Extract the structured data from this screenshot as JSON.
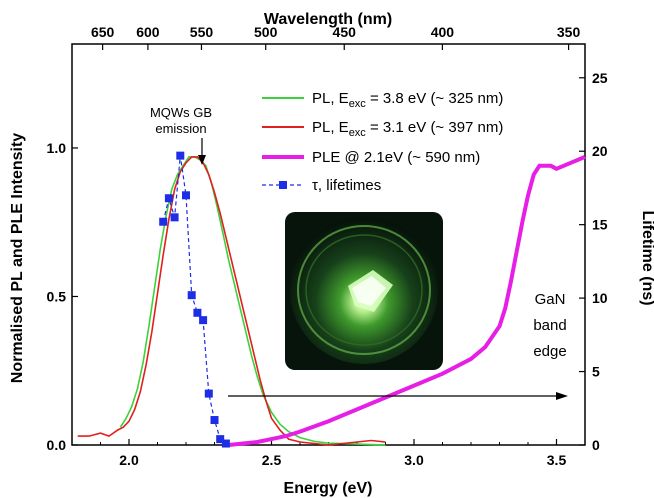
{
  "chart_data": {
    "type": "line",
    "xlabel": "Energy (eV)",
    "ylabel_left": "Normalised PL and PLE Intensity",
    "ylabel_right": "Lifetime (ns)",
    "xlabel_top": "Wavelength (nm)",
    "xlim": [
      1.8,
      3.6
    ],
    "ylim_left": [
      0,
      1.35
    ],
    "ylim_right": [
      0,
      27.3
    ],
    "x_ticks": [
      2.0,
      2.5,
      3.0,
      3.5
    ],
    "x_tick_labels": [
      "2.0",
      "2.5",
      "3.0",
      "3.5"
    ],
    "y_left_ticks": [
      0.0,
      0.5,
      1.0
    ],
    "y_left_tick_labels": [
      "0.0",
      "0.5",
      "1.0"
    ],
    "y_right_ticks": [
      0,
      5,
      10,
      15,
      20,
      25
    ],
    "y_right_tick_labels": [
      "0",
      "5",
      "10",
      "15",
      "20",
      "25"
    ],
    "top_ticks_nm": [
      650,
      600,
      550,
      500,
      450,
      400,
      350
    ],
    "top_tick_labels": [
      "650",
      "600",
      "550",
      "500",
      "450",
      "400",
      "350"
    ],
    "grid": false,
    "legend_placement": "top-right",
    "series": [
      {
        "name": "PL, E_exc = 3.8 eV (~ 325 nm)",
        "legend_main": "PL, E",
        "legend_sub": "exc",
        "legend_rest": " = 3.8 eV (~ 325 nm)",
        "color": "#3cd23c",
        "axis": "left",
        "style": "solid",
        "x": [
          1.97,
          1.99,
          2.01,
          2.03,
          2.05,
          2.07,
          2.09,
          2.11,
          2.13,
          2.15,
          2.17,
          2.19,
          2.21,
          2.23,
          2.25,
          2.27,
          2.29,
          2.31,
          2.33,
          2.35,
          2.37,
          2.39,
          2.41,
          2.43,
          2.45,
          2.47,
          2.5,
          2.53,
          2.56,
          2.6,
          2.65,
          2.7,
          2.8,
          2.9
        ],
        "y": [
          0.06,
          0.09,
          0.13,
          0.19,
          0.28,
          0.4,
          0.53,
          0.66,
          0.77,
          0.86,
          0.91,
          0.94,
          0.97,
          0.97,
          0.96,
          0.94,
          0.88,
          0.8,
          0.71,
          0.62,
          0.54,
          0.46,
          0.38,
          0.3,
          0.23,
          0.17,
          0.11,
          0.07,
          0.045,
          0.025,
          0.012,
          0.006,
          0.003,
          0.0
        ]
      },
      {
        "name": "PL, E_exc = 3.1 eV (~ 397 nm)",
        "legend_main": "PL, E",
        "legend_sub": "exc",
        "legend_rest": " = 3.1 eV (~ 397 nm)",
        "color": "#e0201e",
        "axis": "left",
        "style": "solid",
        "x": [
          1.82,
          1.86,
          1.9,
          1.93,
          1.96,
          1.98,
          2.0,
          2.02,
          2.04,
          2.06,
          2.08,
          2.1,
          2.12,
          2.14,
          2.16,
          2.18,
          2.2,
          2.22,
          2.24,
          2.26,
          2.28,
          2.3,
          2.32,
          2.34,
          2.36,
          2.38,
          2.4,
          2.42,
          2.44,
          2.46,
          2.48,
          2.5,
          2.53,
          2.56,
          2.6,
          2.7,
          2.8,
          2.85,
          2.9
        ],
        "y": [
          0.03,
          0.03,
          0.04,
          0.03,
          0.05,
          0.06,
          0.08,
          0.12,
          0.18,
          0.27,
          0.38,
          0.51,
          0.64,
          0.76,
          0.86,
          0.92,
          0.95,
          0.97,
          0.97,
          0.95,
          0.91,
          0.85,
          0.78,
          0.7,
          0.62,
          0.54,
          0.46,
          0.38,
          0.3,
          0.22,
          0.15,
          0.09,
          0.05,
          0.02,
          0.01,
          0.0,
          0.01,
          0.015,
          0.01
        ]
      },
      {
        "name": "PLE @ 2.1eV (~ 590 nm)",
        "legend_main": "PLE @ 2.1eV (~ 590 nm)",
        "color": "#e61ee6",
        "axis": "left",
        "style": "thick",
        "x": [
          2.35,
          2.4,
          2.45,
          2.5,
          2.55,
          2.6,
          2.7,
          2.8,
          2.9,
          3.0,
          3.1,
          3.2,
          3.25,
          3.3,
          3.32,
          3.34,
          3.36,
          3.38,
          3.4,
          3.42,
          3.44,
          3.46,
          3.48,
          3.5,
          3.55,
          3.6
        ],
        "y": [
          0.0,
          0.005,
          0.01,
          0.02,
          0.03,
          0.045,
          0.08,
          0.12,
          0.16,
          0.2,
          0.24,
          0.29,
          0.33,
          0.4,
          0.46,
          0.55,
          0.65,
          0.75,
          0.84,
          0.91,
          0.94,
          0.94,
          0.94,
          0.93,
          0.95,
          0.97
        ]
      },
      {
        "name": "τ, lifetimes",
        "legend_main": "τ, lifetimes",
        "color": "#1e2ee6",
        "axis": "right",
        "style": "dashed-square",
        "x": [
          2.12,
          2.14,
          2.16,
          2.18,
          2.2,
          2.22,
          2.24,
          2.26,
          2.28,
          2.3,
          2.32,
          2.34
        ],
        "y": [
          15.2,
          16.8,
          15.5,
          19.7,
          17.0,
          10.2,
          9.0,
          8.5,
          3.5,
          1.7,
          0.4,
          0.1
        ]
      }
    ],
    "annotations": {
      "mqw_line1": "MQWs GB",
      "mqw_line2": "emission",
      "gan_line1": "GaN",
      "gan_line2": "band",
      "gan_line3": "edge"
    },
    "inset": "green photoluminescence photo"
  }
}
